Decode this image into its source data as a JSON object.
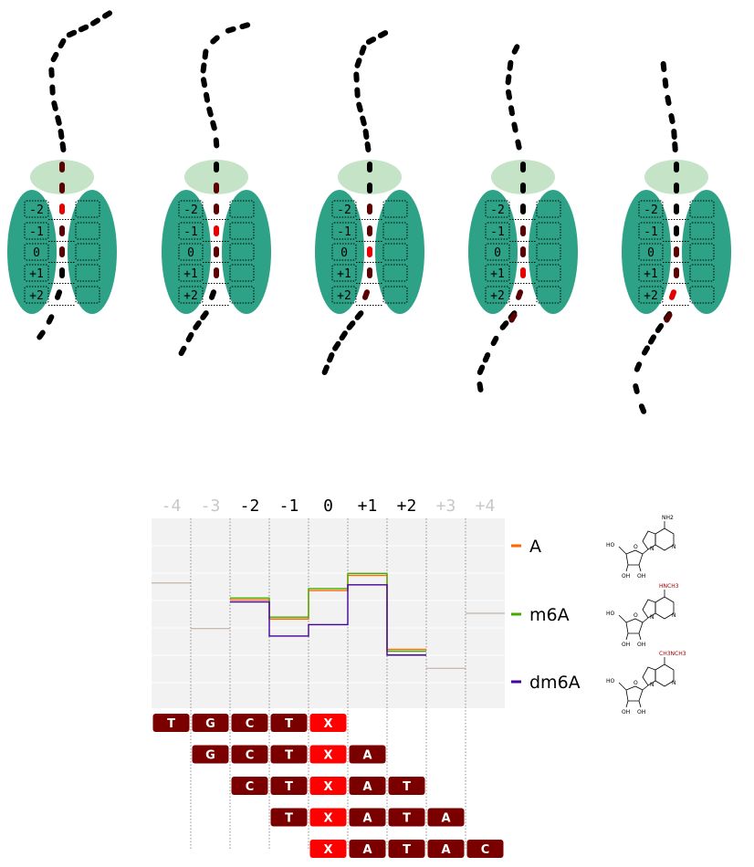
{
  "colors": {
    "pore": "#2ea287",
    "cap": "#c5e3c7",
    "base_black": "#000000",
    "base_dark": "#5a0000",
    "base_red": "#e60000",
    "kmer_box": "#7a0000",
    "kmer_box_highlight": "#ff0000",
    "panel_bg": "#f2f2f2",
    "pos_active": "#000000",
    "pos_inactive": "#c8c8c8",
    "series_A": "#ff6600",
    "series_m6A": "#44aa00",
    "series_dm6A": "#440099",
    "mod_group": "#a00000"
  },
  "pore_labels": [
    "-2",
    "-1",
    "0",
    "+1",
    "+2"
  ],
  "positions": [
    {
      "label": "-4",
      "active": false
    },
    {
      "label": "-3",
      "active": false
    },
    {
      "label": "-2",
      "active": true
    },
    {
      "label": "-1",
      "active": true
    },
    {
      "label": "0",
      "active": true
    },
    {
      "label": "+1",
      "active": true
    },
    {
      "label": "+2",
      "active": true
    },
    {
      "label": "+3",
      "active": false
    },
    {
      "label": "+4",
      "active": false
    }
  ],
  "legend": [
    {
      "name": "A",
      "color": "#ff6600",
      "structure": "adenosine"
    },
    {
      "name": "m6A",
      "color": "#44aa00",
      "structure": "N6-methyladenosine",
      "label_mod": "HNCH3"
    },
    {
      "name": "dm6A",
      "color": "#440099",
      "structure": "N6,N6-dimethyladenosine",
      "label_mod": "CH3NCH3"
    }
  ],
  "structure_labels": {
    "oh": "OH",
    "ho": "HO",
    "o": "O",
    "n": "N",
    "nh2": "NH2"
  },
  "chart_data": {
    "type": "line",
    "x": [
      "-4",
      "-3",
      "-2",
      "-1",
      "0",
      "+1",
      "+2",
      "+3",
      "+4"
    ],
    "ylim": [
      0,
      1
    ],
    "series": [
      {
        "name": "A",
        "values": [
          0.66,
          0.42,
          0.57,
          0.47,
          0.62,
          0.7,
          0.31,
          0.21,
          0.5
        ]
      },
      {
        "name": "m6A",
        "values": [
          0.66,
          0.42,
          0.58,
          0.48,
          0.63,
          0.71,
          0.3,
          0.21,
          0.5
        ]
      },
      {
        "name": "dm6A",
        "values": [
          0.66,
          0.42,
          0.56,
          0.38,
          0.44,
          0.65,
          0.28,
          0.21,
          0.5
        ]
      }
    ]
  },
  "kmers": [
    {
      "start": 0,
      "letters": [
        "T",
        "G",
        "C",
        "T",
        "X"
      ]
    },
    {
      "start": 1,
      "letters": [
        "G",
        "C",
        "T",
        "X",
        "A"
      ]
    },
    {
      "start": 2,
      "letters": [
        "C",
        "T",
        "X",
        "A",
        "T"
      ]
    },
    {
      "start": 3,
      "letters": [
        "T",
        "X",
        "A",
        "T",
        "A"
      ]
    },
    {
      "start": 4,
      "letters": [
        "X",
        "A",
        "T",
        "A",
        "C"
      ]
    }
  ],
  "highlight_letter": "X"
}
